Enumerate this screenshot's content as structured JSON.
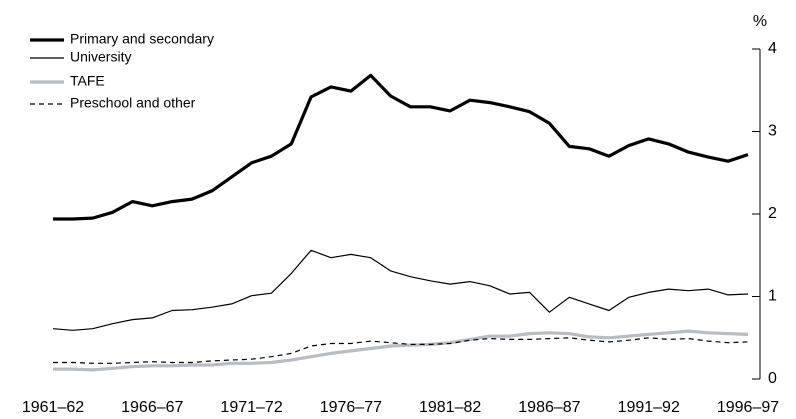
{
  "chart_data": {
    "type": "line",
    "y_label": "%",
    "yaxis_side": "right",
    "legend": "top-left",
    "categories": [
      "1961–62",
      null,
      null,
      null,
      null,
      "1966–67",
      null,
      null,
      null,
      null,
      "1971–72",
      null,
      null,
      null,
      null,
      "1976–77",
      null,
      null,
      null,
      null,
      "1981–82",
      null,
      null,
      null,
      null,
      "1986–87",
      null,
      null,
      null,
      null,
      "1991–92",
      null,
      null,
      null,
      null,
      "1996–97"
    ],
    "ylim": [
      0,
      4
    ],
    "yticks": [
      0,
      1,
      2,
      3,
      4
    ],
    "series": [
      {
        "name": "Primary and secondary",
        "color": "#000000",
        "line_width": 3.2,
        "dash": false,
        "values": [
          1.94,
          1.94,
          1.95,
          2.02,
          2.15,
          2.1,
          2.15,
          2.18,
          2.28,
          2.45,
          2.62,
          2.7,
          2.85,
          3.42,
          3.54,
          3.49,
          3.68,
          3.43,
          3.3,
          3.3,
          3.25,
          3.38,
          3.35,
          3.3,
          3.24,
          3.1,
          2.82,
          2.79,
          2.7,
          2.83,
          2.91,
          2.85,
          2.75,
          2.69,
          2.64,
          2.72
        ]
      },
      {
        "name": "University",
        "color": "#000000",
        "line_width": 1.2,
        "dash": false,
        "values": [
          0.61,
          0.59,
          0.61,
          0.67,
          0.72,
          0.74,
          0.83,
          0.84,
          0.87,
          0.91,
          1.01,
          1.04,
          1.28,
          1.56,
          1.47,
          1.51,
          1.47,
          1.31,
          1.24,
          1.19,
          1.15,
          1.18,
          1.13,
          1.03,
          1.05,
          0.81,
          0.99,
          0.91,
          0.83,
          0.99,
          1.05,
          1.09,
          1.07,
          1.09,
          1.02,
          1.03
        ]
      },
      {
        "name": "TAFE",
        "color": "#b9bdc1",
        "line_width": 3.2,
        "dash": false,
        "values": [
          0.12,
          0.12,
          0.11,
          0.13,
          0.15,
          0.16,
          0.16,
          0.17,
          0.17,
          0.19,
          0.19,
          0.2,
          0.23,
          0.27,
          0.31,
          0.34,
          0.37,
          0.4,
          0.41,
          0.42,
          0.44,
          0.48,
          0.52,
          0.52,
          0.55,
          0.56,
          0.55,
          0.51,
          0.5,
          0.52,
          0.54,
          0.56,
          0.58,
          0.56,
          0.55,
          0.54
        ]
      },
      {
        "name": "Preschool and other",
        "color": "#000000",
        "line_width": 1.2,
        "dash": true,
        "values": [
          0.2,
          0.2,
          0.19,
          0.19,
          0.2,
          0.21,
          0.2,
          0.2,
          0.22,
          0.23,
          0.24,
          0.27,
          0.31,
          0.4,
          0.43,
          0.43,
          0.46,
          0.44,
          0.42,
          0.42,
          0.43,
          0.47,
          0.49,
          0.48,
          0.48,
          0.49,
          0.5,
          0.47,
          0.45,
          0.47,
          0.5,
          0.48,
          0.49,
          0.46,
          0.44,
          0.45
        ]
      }
    ]
  }
}
